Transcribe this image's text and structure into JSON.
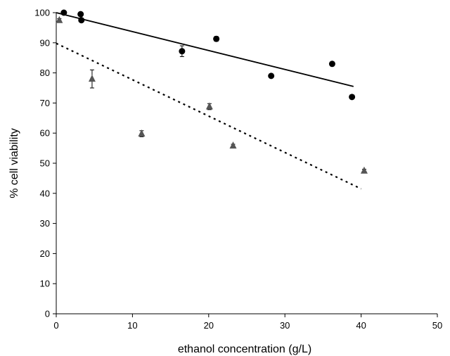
{
  "chart_data": {
    "type": "scatter",
    "xlabel": "ethanol concentration (g/L)",
    "ylabel": "% cell viability",
    "xlim": [
      0,
      50
    ],
    "ylim": [
      0,
      100
    ],
    "xticks": [
      0,
      10,
      20,
      30,
      40,
      50
    ],
    "yticks": [
      0,
      10,
      20,
      30,
      40,
      50,
      60,
      70,
      80,
      90,
      100
    ],
    "grid": false,
    "series": [
      {
        "marker": "circle",
        "color": "#000000",
        "x": [
          1.0,
          3.2,
          3.3,
          16.5,
          21.0,
          28.2,
          36.2,
          38.8
        ],
        "y": [
          100,
          99.5,
          97.5,
          87.2,
          91.3,
          79.0,
          83.0,
          72.0
        ],
        "error": [
          0,
          0,
          0,
          1.8,
          0.8,
          0,
          0,
          0
        ],
        "trendline": {
          "style": "solid",
          "x": [
            0,
            39
          ],
          "y": [
            100,
            75.5
          ]
        }
      },
      {
        "marker": "triangle",
        "color": "#555555",
        "x": [
          0.4,
          4.7,
          11.2,
          20.1,
          23.2,
          40.4
        ],
        "y": [
          97.5,
          78.0,
          59.8,
          68.8,
          55.8,
          47.5
        ],
        "error": [
          0.5,
          3.0,
          1.0,
          1.0,
          0.5,
          0.5
        ],
        "trendline": {
          "style": "dotted",
          "x": [
            0,
            40
          ],
          "y": [
            89.8,
            41.5
          ]
        }
      }
    ]
  }
}
